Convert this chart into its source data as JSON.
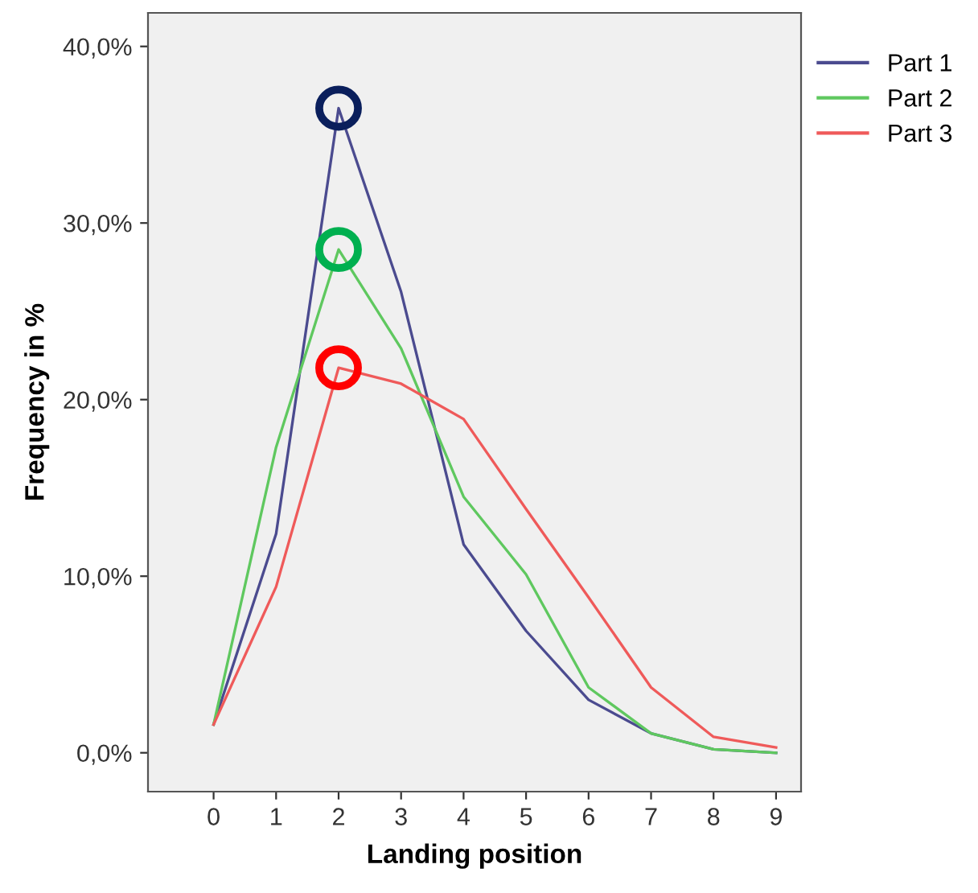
{
  "chart_data": {
    "type": "line",
    "xlabel": "Landing position",
    "ylabel": "Frequency in %",
    "x": [
      0,
      1,
      2,
      3,
      4,
      5,
      6,
      7,
      8,
      9
    ],
    "series": [
      {
        "name": "Part 1",
        "color": "#4b4b8f",
        "values": [
          1.6,
          12.4,
          36.5,
          26.1,
          11.8,
          6.9,
          3.0,
          1.1,
          0.2,
          0.0
        ]
      },
      {
        "name": "Part 2",
        "color": "#5fc85f",
        "values": [
          1.6,
          17.3,
          28.5,
          22.9,
          14.5,
          10.1,
          3.7,
          1.1,
          0.2,
          0.0
        ]
      },
      {
        "name": "Part 3",
        "color": "#ef5a5a",
        "values": [
          1.6,
          9.4,
          21.8,
          20.9,
          18.9,
          13.8,
          8.8,
          3.7,
          0.9,
          0.3
        ]
      }
    ],
    "xlim": [
      -1.05,
      9.4
    ],
    "xticks": [
      0,
      1,
      2,
      3,
      4,
      5,
      6,
      7,
      8,
      9
    ],
    "ylim": [
      -2.2,
      41.9
    ],
    "yticks": [
      {
        "value": 0,
        "label": "0,0%"
      },
      {
        "value": 10,
        "label": "10,0%"
      },
      {
        "value": 20,
        "label": "20,0%"
      },
      {
        "value": 30,
        "label": "30,0%"
      },
      {
        "value": 40,
        "label": "40,0%"
      }
    ],
    "legend": "top right",
    "grid": false,
    "marker": "none",
    "line_style": "solid"
  }
}
